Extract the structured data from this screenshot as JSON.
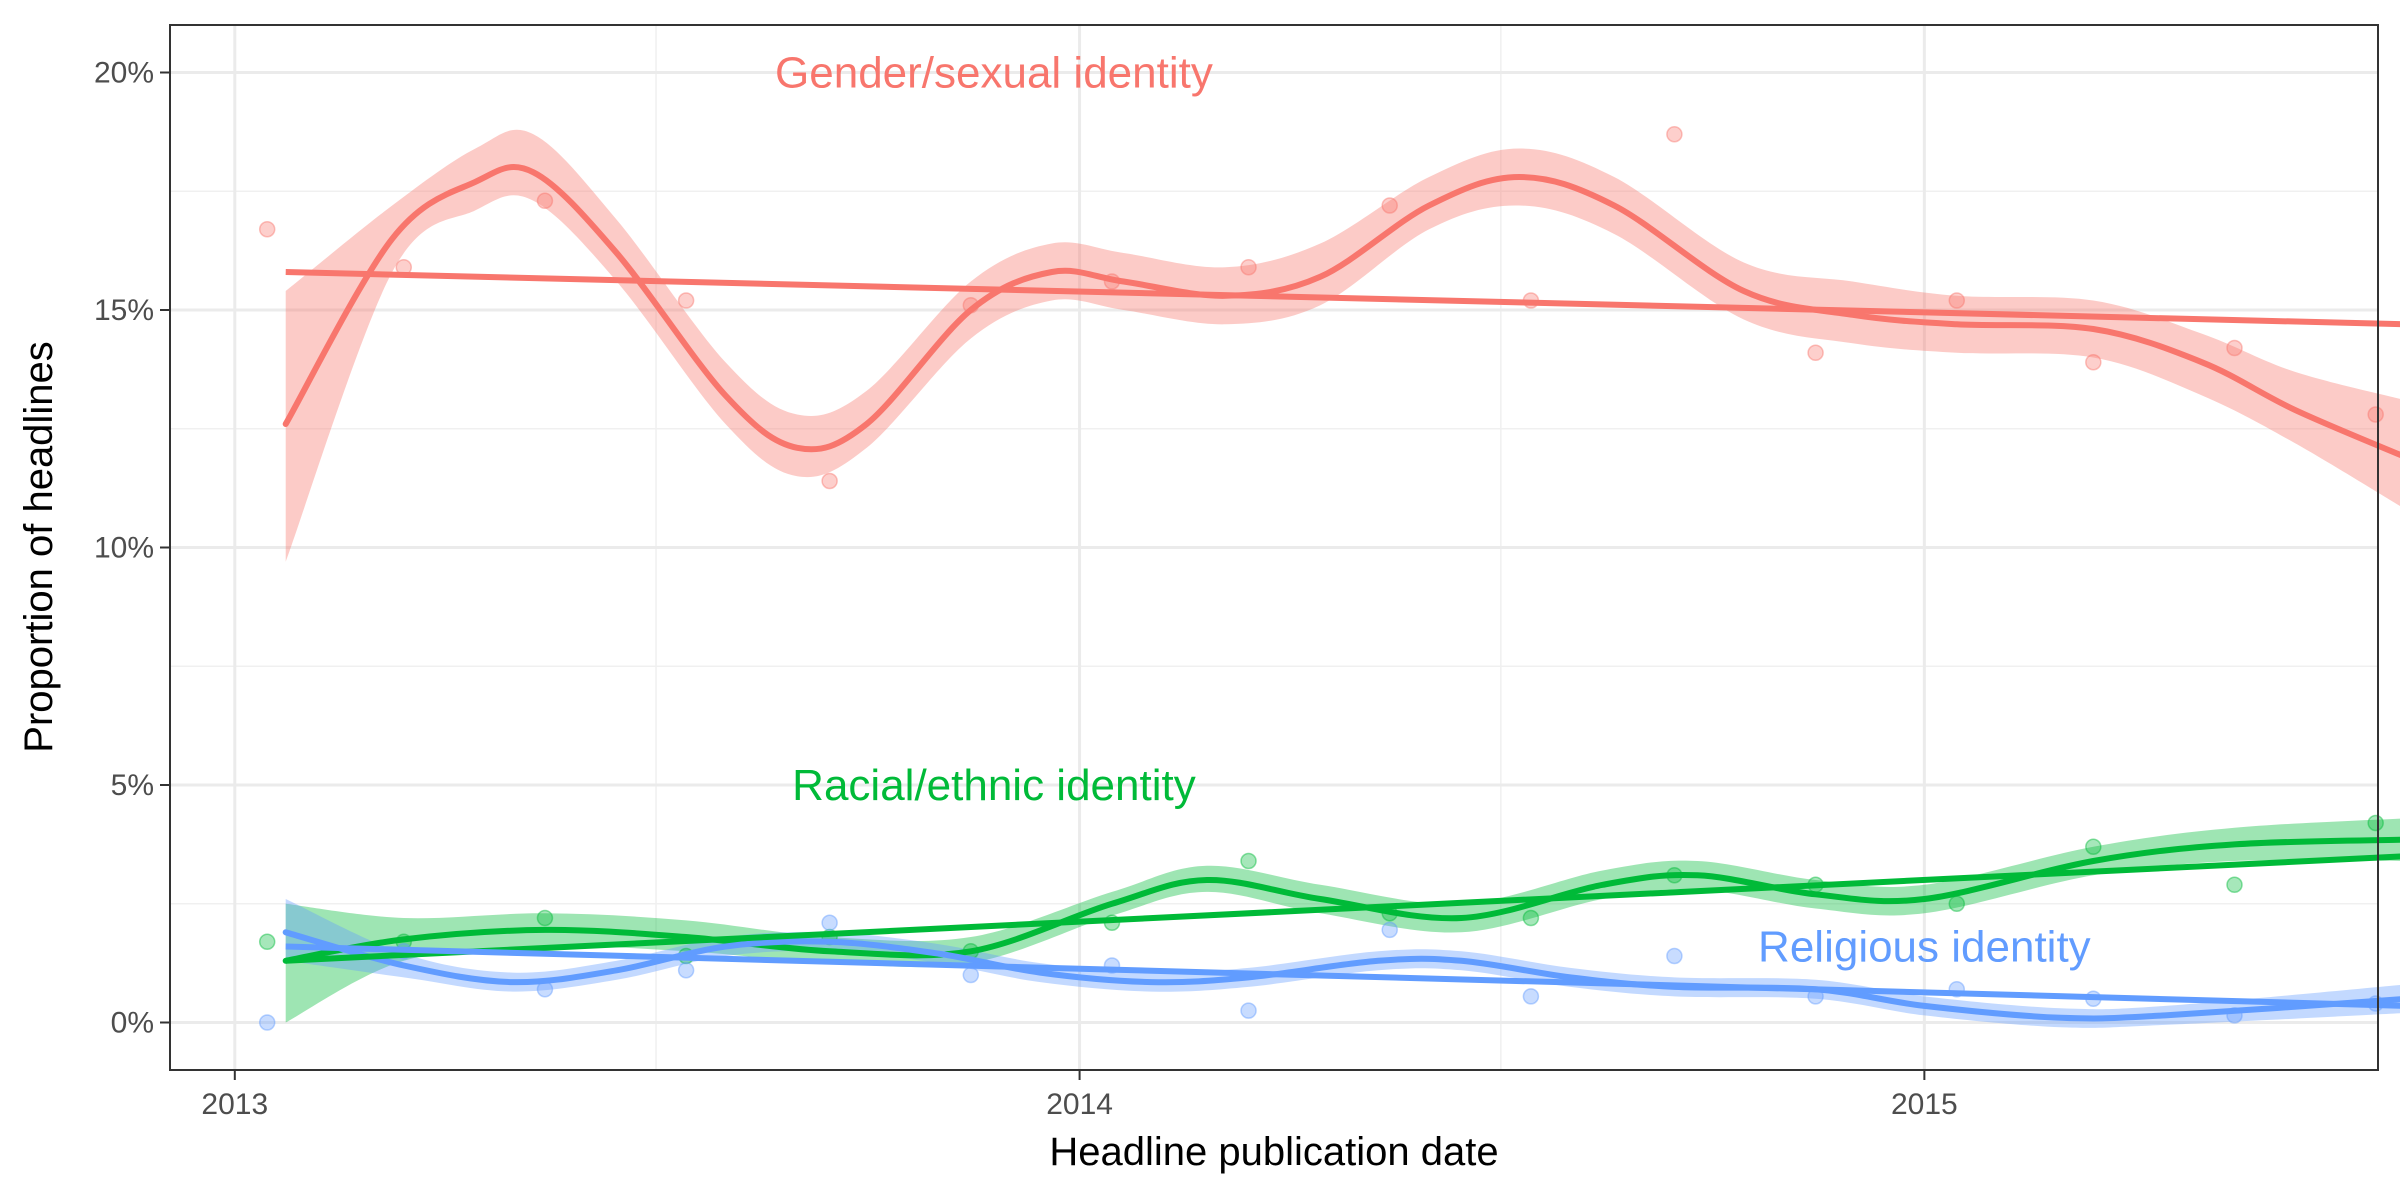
{
  "chart_data": {
    "type": "scatter",
    "xlabel": "Headline publication date",
    "ylabel": "Proportion of headlines",
    "xlim": [
      "2012-12-04",
      "2015-07-16"
    ],
    "ylim": [
      -1.0,
      21.0
    ],
    "x_ticks": [
      {
        "date": "2013-01-01",
        "label": "2013"
      },
      {
        "date": "2014-01-01",
        "label": "2014"
      },
      {
        "date": "2015-01-01",
        "label": "2015"
      }
    ],
    "x_minor_ticks": [
      "2013-07-02",
      "2014-07-02"
    ],
    "y_ticks": [
      {
        "value": 0,
        "label": "0%"
      },
      {
        "value": 5,
        "label": "5%"
      },
      {
        "value": 10,
        "label": "10%"
      },
      {
        "value": 15,
        "label": "15%"
      },
      {
        "value": 20,
        "label": "20%"
      }
    ],
    "y_minor_ticks": [
      2.5,
      7.5,
      12.5,
      17.5
    ],
    "grid": true,
    "legend": "none",
    "series": [
      {
        "name": "Gender/sexual identity",
        "color": "#F8766D",
        "label_position": {
          "date": "2013-11-25",
          "value": 20.0
        },
        "points": [
          {
            "date": "2013-01-15",
            "value": 16.7
          },
          {
            "date": "2013-03-15",
            "value": 15.9
          },
          {
            "date": "2013-05-15",
            "value": 17.3
          },
          {
            "date": "2013-07-15",
            "value": 15.2
          },
          {
            "date": "2013-09-15",
            "value": 11.4
          },
          {
            "date": "2013-11-15",
            "value": 15.1
          },
          {
            "date": "2014-01-15",
            "value": 15.6
          },
          {
            "date": "2014-03-15",
            "value": 15.9
          },
          {
            "date": "2014-05-15",
            "value": 17.2
          },
          {
            "date": "2014-07-15",
            "value": 15.2
          },
          {
            "date": "2014-09-15",
            "value": 18.7
          },
          {
            "date": "2014-11-15",
            "value": 14.1
          },
          {
            "date": "2015-01-15",
            "value": 15.2
          },
          {
            "date": "2015-03-15",
            "value": 13.9
          },
          {
            "date": "2015-05-15",
            "value": 14.2
          },
          {
            "date": "2015-07-15",
            "value": 12.8
          }
        ],
        "smooth": [
          {
            "date": "2013-01-23",
            "value": 12.6,
            "lo": 9.7,
            "hi": 15.4
          },
          {
            "date": "2013-03-10",
            "value": 16.5,
            "lo": 15.8,
            "hi": 17.2
          },
          {
            "date": "2013-04-15",
            "value": 17.7,
            "lo": 17.1,
            "hi": 18.4
          },
          {
            "date": "2013-05-10",
            "value": 17.9,
            "lo": 17.3,
            "hi": 18.7
          },
          {
            "date": "2013-06-15",
            "value": 16.2,
            "lo": 15.6,
            "hi": 16.9
          },
          {
            "date": "2013-08-01",
            "value": 13.2,
            "lo": 12.6,
            "hi": 13.9
          },
          {
            "date": "2013-09-01",
            "value": 12.1,
            "lo": 11.5,
            "hi": 12.8
          },
          {
            "date": "2013-10-01",
            "value": 12.6,
            "lo": 12.1,
            "hi": 13.3
          },
          {
            "date": "2013-11-15",
            "value": 15.0,
            "lo": 14.4,
            "hi": 15.6
          },
          {
            "date": "2013-12-20",
            "value": 15.8,
            "lo": 15.2,
            "hi": 16.4
          },
          {
            "date": "2014-01-20",
            "value": 15.6,
            "lo": 15.0,
            "hi": 16.2
          },
          {
            "date": "2014-03-05",
            "value": 15.3,
            "lo": 14.7,
            "hi": 15.9
          },
          {
            "date": "2014-04-15",
            "value": 15.7,
            "lo": 15.1,
            "hi": 16.4
          },
          {
            "date": "2014-06-01",
            "value": 17.2,
            "lo": 16.7,
            "hi": 17.8
          },
          {
            "date": "2014-07-10",
            "value": 17.8,
            "lo": 17.2,
            "hi": 18.4
          },
          {
            "date": "2014-08-20",
            "value": 17.2,
            "lo": 16.6,
            "hi": 17.8
          },
          {
            "date": "2014-10-15",
            "value": 15.4,
            "lo": 14.8,
            "hi": 16.0
          },
          {
            "date": "2014-12-01",
            "value": 14.9,
            "lo": 14.3,
            "hi": 15.6
          },
          {
            "date": "2015-01-15",
            "value": 14.7,
            "lo": 14.1,
            "hi": 15.3
          },
          {
            "date": "2015-03-15",
            "value": 14.6,
            "lo": 14.0,
            "hi": 15.2
          },
          {
            "date": "2015-05-01",
            "value": 13.9,
            "lo": 13.2,
            "hi": 14.5
          },
          {
            "date": "2015-06-10",
            "value": 12.9,
            "lo": 12.2,
            "hi": 13.7
          },
          {
            "date": "2015-07-28",
            "value": 11.9,
            "lo": 10.8,
            "hi": 13.1
          }
        ],
        "trend": [
          {
            "date": "2013-01-23",
            "value": 15.8
          },
          {
            "date": "2015-07-28",
            "value": 14.7
          }
        ]
      },
      {
        "name": "Racial/ethnic identity",
        "color": "#00BA38",
        "label_position": {
          "date": "2013-11-25",
          "value": 5.0
        },
        "points": [
          {
            "date": "2013-01-15",
            "value": 1.7
          },
          {
            "date": "2013-03-15",
            "value": 1.7
          },
          {
            "date": "2013-05-15",
            "value": 2.2
          },
          {
            "date": "2013-07-15",
            "value": 1.4
          },
          {
            "date": "2013-09-15",
            "value": 1.8
          },
          {
            "date": "2013-11-15",
            "value": 1.5
          },
          {
            "date": "2014-01-15",
            "value": 2.1
          },
          {
            "date": "2014-03-15",
            "value": 3.4
          },
          {
            "date": "2014-05-15",
            "value": 2.3
          },
          {
            "date": "2014-07-15",
            "value": 2.2
          },
          {
            "date": "2014-09-15",
            "value": 3.1
          },
          {
            "date": "2014-11-15",
            "value": 2.9
          },
          {
            "date": "2015-01-15",
            "value": 2.5
          },
          {
            "date": "2015-03-15",
            "value": 3.7
          },
          {
            "date": "2015-05-15",
            "value": 2.9
          },
          {
            "date": "2015-07-15",
            "value": 4.2
          }
        ],
        "smooth": [
          {
            "date": "2013-01-23",
            "value": 1.3,
            "lo": 0.0,
            "hi": 2.5
          },
          {
            "date": "2013-03-15",
            "value": 1.75,
            "lo": 1.3,
            "hi": 2.2
          },
          {
            "date": "2013-05-15",
            "value": 1.95,
            "lo": 1.6,
            "hi": 2.3
          },
          {
            "date": "2013-07-15",
            "value": 1.8,
            "lo": 1.5,
            "hi": 2.15
          },
          {
            "date": "2013-09-15",
            "value": 1.5,
            "lo": 1.25,
            "hi": 1.8
          },
          {
            "date": "2013-11-15",
            "value": 1.5,
            "lo": 1.25,
            "hi": 1.8
          },
          {
            "date": "2014-01-15",
            "value": 2.5,
            "lo": 2.25,
            "hi": 2.75
          },
          {
            "date": "2014-02-25",
            "value": 3.0,
            "lo": 2.75,
            "hi": 3.3
          },
          {
            "date": "2014-04-15",
            "value": 2.6,
            "lo": 2.3,
            "hi": 2.9
          },
          {
            "date": "2014-06-15",
            "value": 2.2,
            "lo": 1.9,
            "hi": 2.5
          },
          {
            "date": "2014-08-15",
            "value": 2.9,
            "lo": 2.6,
            "hi": 3.2
          },
          {
            "date": "2014-09-25",
            "value": 3.1,
            "lo": 2.8,
            "hi": 3.4
          },
          {
            "date": "2014-11-15",
            "value": 2.7,
            "lo": 2.4,
            "hi": 3.0
          },
          {
            "date": "2015-01-01",
            "value": 2.6,
            "lo": 2.3,
            "hi": 2.9
          },
          {
            "date": "2015-03-15",
            "value": 3.4,
            "lo": 3.1,
            "hi": 3.7
          },
          {
            "date": "2015-05-15",
            "value": 3.75,
            "lo": 3.4,
            "hi": 4.1
          },
          {
            "date": "2015-07-28",
            "value": 3.85,
            "lo": 3.4,
            "hi": 4.3
          }
        ],
        "trend": [
          {
            "date": "2013-01-23",
            "value": 1.3
          },
          {
            "date": "2015-07-28",
            "value": 3.5
          }
        ]
      },
      {
        "name": "Religious identity",
        "color": "#619CFF",
        "label_position": {
          "date": "2015-01-01",
          "value": 1.6
        },
        "points": [
          {
            "date": "2013-01-15",
            "value": 0.0
          },
          {
            "date": "2013-03-15",
            "value": 1.5
          },
          {
            "date": "2013-05-15",
            "value": 0.7
          },
          {
            "date": "2013-07-15",
            "value": 1.1
          },
          {
            "date": "2013-09-15",
            "value": 2.1
          },
          {
            "date": "2013-11-15",
            "value": 1.0
          },
          {
            "date": "2014-01-15",
            "value": 1.2
          },
          {
            "date": "2014-03-15",
            "value": 0.25
          },
          {
            "date": "2014-05-15",
            "value": 1.95
          },
          {
            "date": "2014-07-15",
            "value": 0.55
          },
          {
            "date": "2014-09-15",
            "value": 1.4
          },
          {
            "date": "2014-11-15",
            "value": 0.55
          },
          {
            "date": "2015-01-15",
            "value": 0.7
          },
          {
            "date": "2015-03-15",
            "value": 0.5
          },
          {
            "date": "2015-05-15",
            "value": 0.15
          },
          {
            "date": "2015-07-15",
            "value": 0.4
          }
        ],
        "smooth": [
          {
            "date": "2013-01-23",
            "value": 1.9,
            "lo": 1.3,
            "hi": 2.6
          },
          {
            "date": "2013-03-15",
            "value": 1.2,
            "lo": 0.95,
            "hi": 1.45
          },
          {
            "date": "2013-05-01",
            "value": 0.85,
            "lo": 0.65,
            "hi": 1.05
          },
          {
            "date": "2013-06-15",
            "value": 1.1,
            "lo": 0.9,
            "hi": 1.3
          },
          {
            "date": "2013-08-01",
            "value": 1.6,
            "lo": 1.4,
            "hi": 1.8
          },
          {
            "date": "2013-09-15",
            "value": 1.7,
            "lo": 1.5,
            "hi": 1.9
          },
          {
            "date": "2013-11-01",
            "value": 1.45,
            "lo": 1.25,
            "hi": 1.65
          },
          {
            "date": "2013-12-15",
            "value": 1.05,
            "lo": 0.85,
            "hi": 1.25
          },
          {
            "date": "2014-02-01",
            "value": 0.85,
            "lo": 0.65,
            "hi": 1.05
          },
          {
            "date": "2014-03-15",
            "value": 0.95,
            "lo": 0.75,
            "hi": 1.15
          },
          {
            "date": "2014-05-10",
            "value": 1.3,
            "lo": 1.1,
            "hi": 1.5
          },
          {
            "date": "2014-06-15",
            "value": 1.3,
            "lo": 1.1,
            "hi": 1.5
          },
          {
            "date": "2014-08-01",
            "value": 0.95,
            "lo": 0.75,
            "hi": 1.15
          },
          {
            "date": "2014-09-15",
            "value": 0.75,
            "lo": 0.55,
            "hi": 0.95
          },
          {
            "date": "2014-11-15",
            "value": 0.7,
            "lo": 0.5,
            "hi": 0.9
          },
          {
            "date": "2015-01-01",
            "value": 0.35,
            "lo": 0.15,
            "hi": 0.55
          },
          {
            "date": "2015-03-01",
            "value": 0.1,
            "lo": -0.1,
            "hi": 0.3
          },
          {
            "date": "2015-04-15",
            "value": 0.15,
            "lo": -0.05,
            "hi": 0.35
          },
          {
            "date": "2015-07-28",
            "value": 0.5,
            "lo": 0.2,
            "hi": 0.8
          }
        ],
        "trend": [
          {
            "date": "2013-01-23",
            "value": 1.6
          },
          {
            "date": "2015-07-28",
            "value": 0.35
          }
        ]
      }
    ]
  }
}
